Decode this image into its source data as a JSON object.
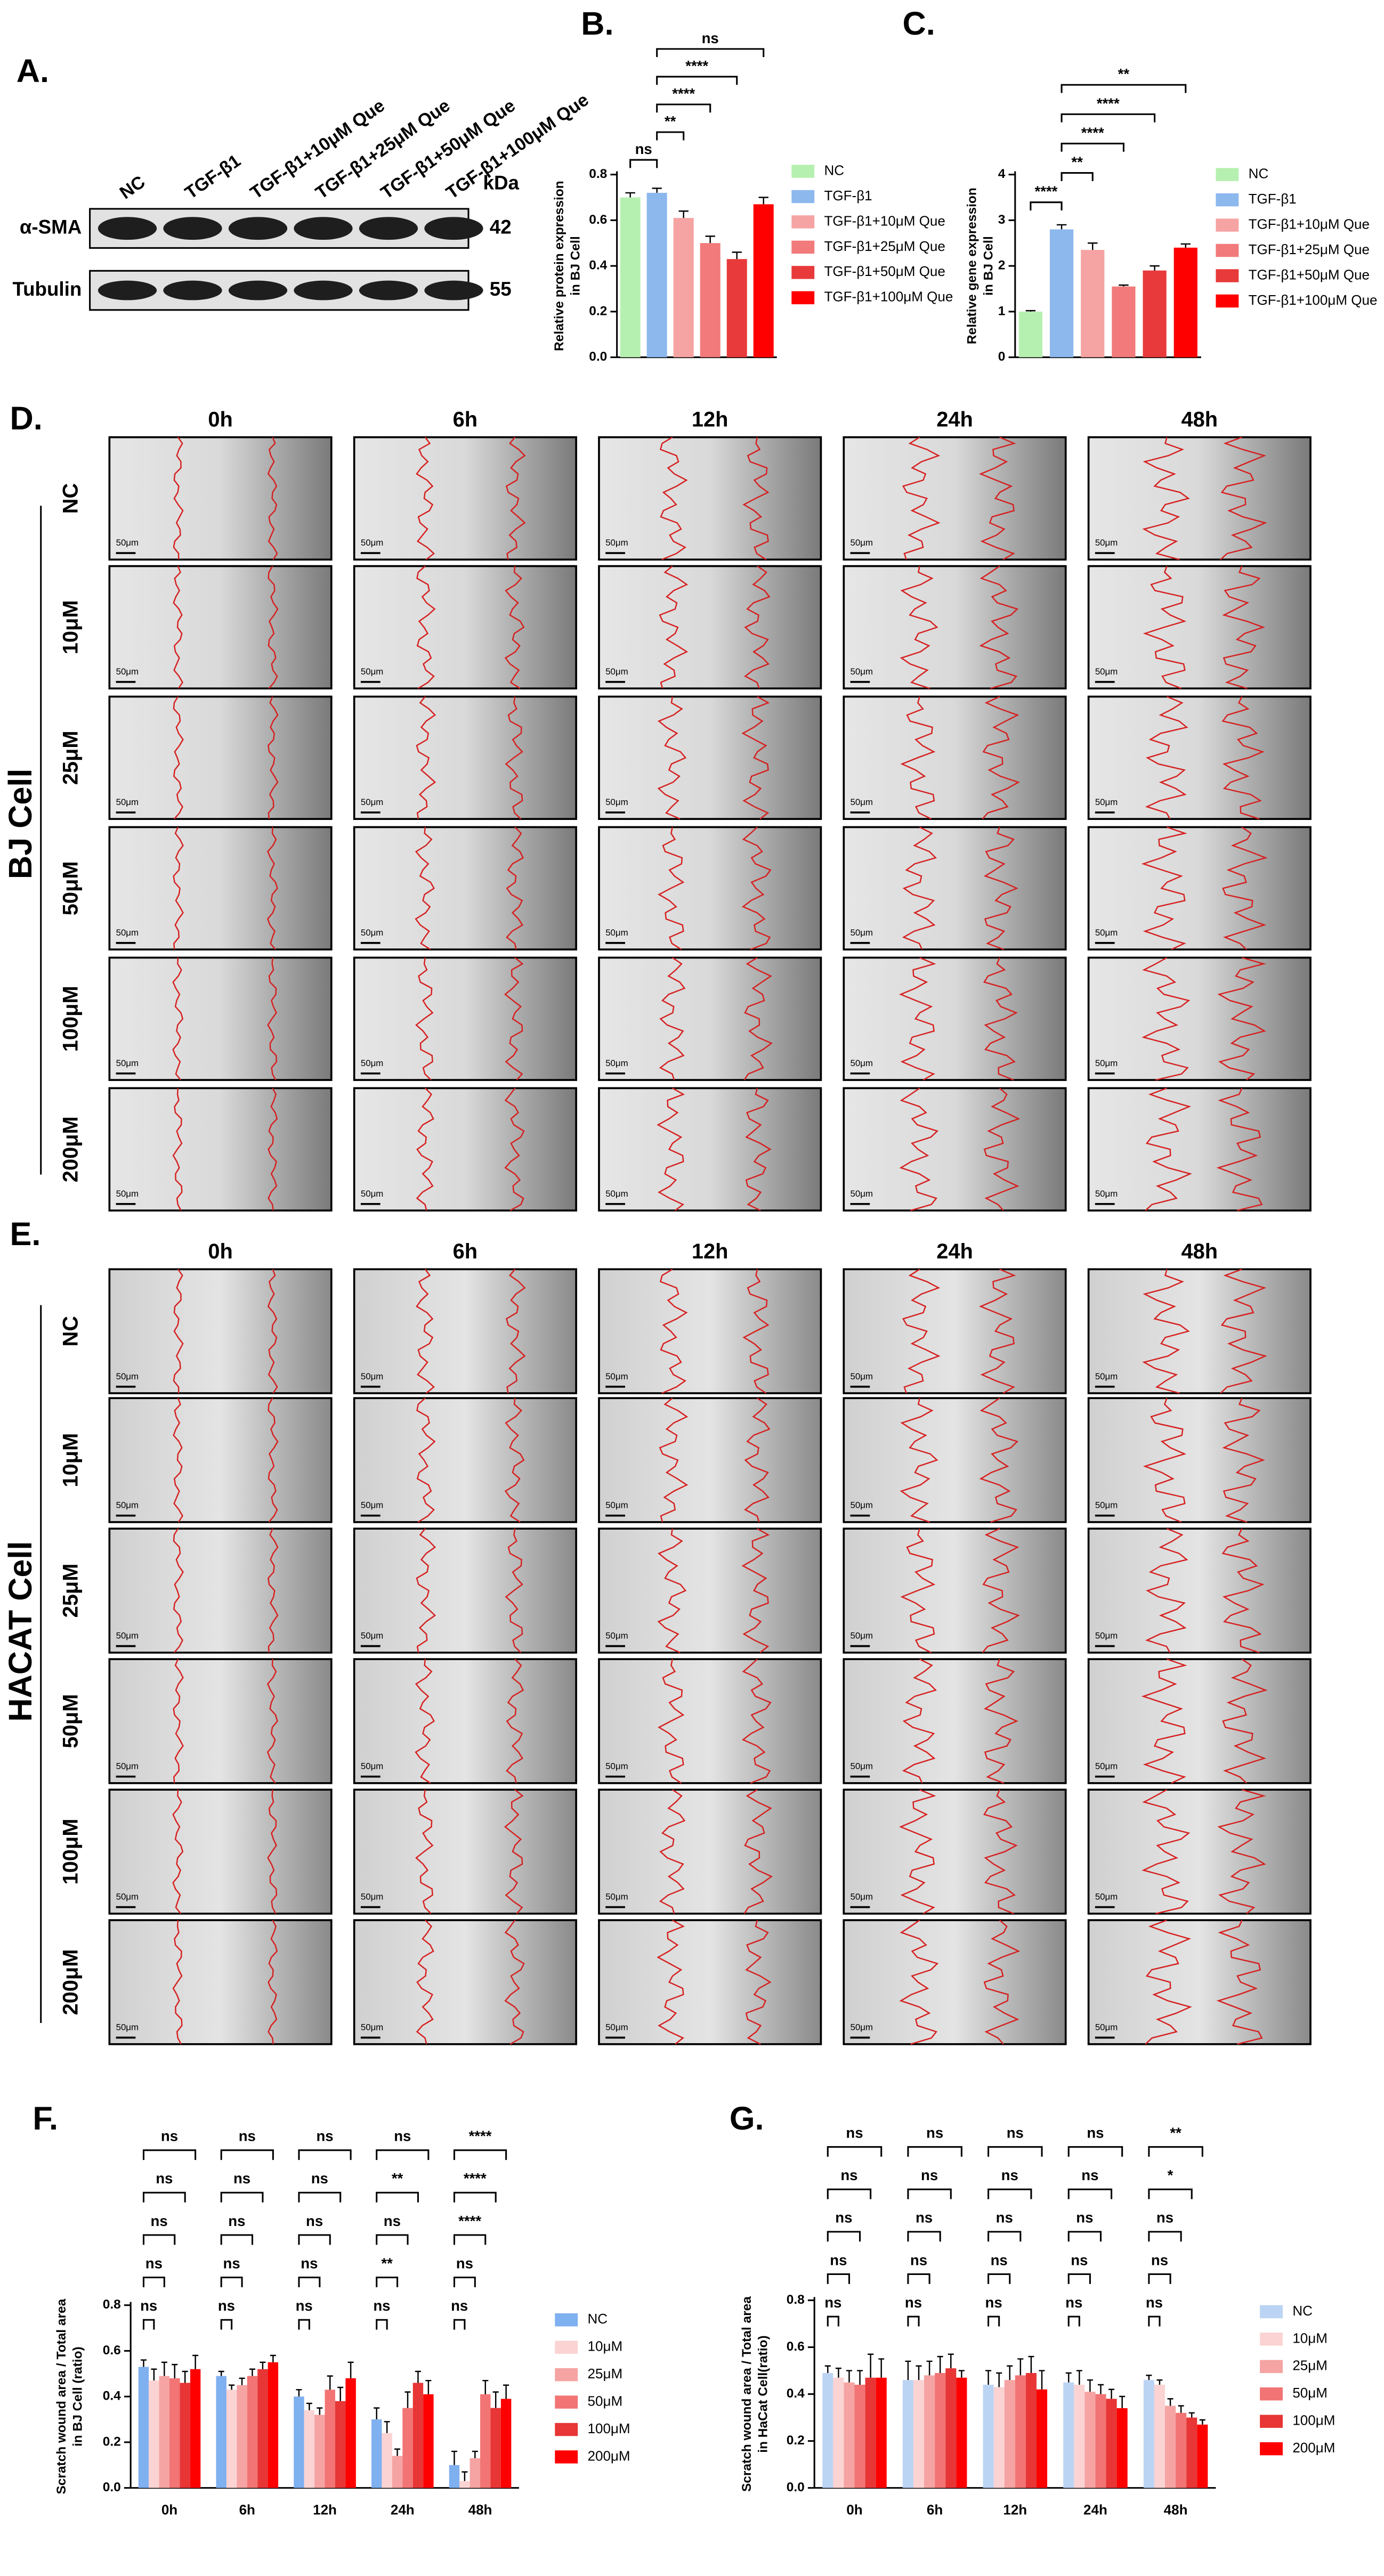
{
  "panel_a": {
    "label": "A.",
    "lanes": [
      "NC",
      "TGF-β1",
      "TGF-β1+10μM Que",
      "TGF-β1+25μM Que",
      "TGF-β1+50μM Que",
      "TGF-β1+100μM Que"
    ],
    "unit": "kDa",
    "rows": [
      {
        "name": "α-SMA",
        "mw": 42
      },
      {
        "name": "Tubulin",
        "mw": 55
      }
    ]
  },
  "chart_data": [
    {
      "type": "bar",
      "panel_label": "B.",
      "y_label": [
        "Relative protein expression",
        "in BJ Cell"
      ],
      "categories": [
        "NC",
        "TGF-β1",
        "TGF-β1+10μM Que",
        "TGF-β1+25μM Que",
        "TGF-β1+50μM Que",
        "TGF-β1+100μM Que"
      ],
      "values": [
        0.7,
        0.72,
        0.61,
        0.5,
        0.43,
        0.67
      ],
      "errors": [
        0.02,
        0.02,
        0.03,
        0.03,
        0.03,
        0.03
      ],
      "colors": [
        "#b6f0b0",
        "#8cb8ee",
        "#f6a3a3",
        "#f27a7a",
        "#e83a3a",
        "#ff0000"
      ],
      "ylim": [
        0,
        0.8
      ],
      "yticks": [
        {
          "value": 0,
          "label": "0.0"
        },
        0.2,
        0.4,
        0.6,
        0.8
      ],
      "legend": "right",
      "significance": [
        {
          "text": "ns",
          "pair": [
            "NC",
            "TGF-β1"
          ]
        },
        {
          "text": "**",
          "pair": [
            "TGF-β1",
            "TGF-β1+10μM Que"
          ]
        },
        {
          "text": "****",
          "pair": [
            "TGF-β1",
            "TGF-β1+25μM Que"
          ]
        },
        {
          "text": "****",
          "pair": [
            "TGF-β1",
            "TGF-β1+50μM Que"
          ]
        },
        {
          "text": "ns",
          "pair": [
            "TGF-β1",
            "TGF-β1+100μM Que"
          ]
        }
      ]
    },
    {
      "type": "bar",
      "panel_label": "C.",
      "y_label": [
        "Relative gene expression",
        "in BJ Cell"
      ],
      "categories": [
        "NC",
        "TGF-β1",
        "TGF-β1+10μM Que",
        "TGF-β1+25μM Que",
        "TGF-β1+50μM Que",
        "TGF-β1+100μM Que"
      ],
      "values": [
        1.0,
        2.8,
        2.35,
        1.55,
        1.9,
        2.4
      ],
      "errors": [
        0.02,
        0.1,
        0.15,
        0.03,
        0.1,
        0.08
      ],
      "colors": [
        "#b6f0b0",
        "#8cb8ee",
        "#f6a3a3",
        "#f27a7a",
        "#e83a3a",
        "#ff0000"
      ],
      "ylim": [
        0,
        4
      ],
      "yticks": [
        0,
        1,
        2,
        3,
        4
      ],
      "legend": "right",
      "significance": [
        {
          "text": "****",
          "pair": [
            "NC",
            "TGF-β1"
          ]
        },
        {
          "text": "**",
          "pair": [
            "TGF-β1",
            "TGF-β1+10μM Que"
          ]
        },
        {
          "text": "****",
          "pair": [
            "TGF-β1",
            "TGF-β1+25μM Que"
          ]
        },
        {
          "text": "****",
          "pair": [
            "TGF-β1",
            "TGF-β1+50μM Que"
          ]
        },
        {
          "text": "**",
          "pair": [
            "TGF-β1",
            "TGF-β1+100μM Que"
          ]
        }
      ]
    },
    {
      "type": "grouped_bar",
      "panel_label": "F.",
      "y_label": [
        "Scratch wound area / Total area",
        "in BJ Cell (ratio)"
      ],
      "categories": [
        "0h",
        "6h",
        "12h",
        "24h",
        "48h"
      ],
      "series": [
        {
          "name": "NC",
          "color": "#7fb0f0",
          "values": [
            0.53,
            0.49,
            0.4,
            0.3,
            0.1
          ],
          "errors": [
            0.03,
            0.02,
            0.03,
            0.05,
            0.06
          ]
        },
        {
          "name": "10μM",
          "color": "#fbd3d3",
          "values": [
            0.47,
            0.43,
            0.34,
            0.24,
            0.03
          ],
          "errors": [
            0.05,
            0.02,
            0.03,
            0.05,
            0.04
          ]
        },
        {
          "name": "25μM",
          "color": "#f6a3a3",
          "values": [
            0.49,
            0.45,
            0.32,
            0.14,
            0.13
          ],
          "errors": [
            0.06,
            0.03,
            0.03,
            0.03,
            0.03
          ]
        },
        {
          "name": "50μM",
          "color": "#f27474",
          "values": [
            0.48,
            0.49,
            0.43,
            0.35,
            0.41
          ],
          "errors": [
            0.06,
            0.03,
            0.06,
            0.07,
            0.06
          ]
        },
        {
          "name": "100μM",
          "color": "#e83535",
          "values": [
            0.46,
            0.52,
            0.38,
            0.46,
            0.35
          ],
          "errors": [
            0.05,
            0.03,
            0.06,
            0.05,
            0.07
          ]
        },
        {
          "name": "200μM",
          "color": "#ff0000",
          "values": [
            0.52,
            0.55,
            0.48,
            0.41,
            0.39
          ],
          "errors": [
            0.06,
            0.03,
            0.07,
            0.06,
            0.06
          ]
        }
      ],
      "ylim": [
        0,
        0.8
      ],
      "yticks": [
        {
          "value": 0,
          "label": "0.0"
        },
        0.2,
        0.4,
        0.6,
        0.8
      ],
      "legend": "right",
      "significance": [
        [
          "ns",
          "ns",
          "ns",
          "ns",
          "ns"
        ],
        [
          "ns",
          "ns",
          "ns",
          "ns",
          "ns"
        ],
        [
          "ns",
          "ns",
          "ns",
          "ns",
          "ns"
        ],
        [
          "ns",
          "**",
          "ns",
          "**",
          "ns"
        ],
        [
          "ns",
          "ns",
          "****",
          "****",
          "****"
        ]
      ]
    },
    {
      "type": "grouped_bar",
      "panel_label": "G.",
      "y_label": [
        "Scratch wound area / Total area",
        "in HaCat Cell(ratio)"
      ],
      "categories": [
        "0h",
        "6h",
        "12h",
        "24h",
        "48h"
      ],
      "series": [
        {
          "name": "NC",
          "color": "#bcd4f4",
          "values": [
            0.49,
            0.46,
            0.44,
            0.45,
            0.46
          ],
          "errors": [
            0.03,
            0.08,
            0.06,
            0.04,
            0.02
          ]
        },
        {
          "name": "10μM",
          "color": "#fbd3d3",
          "values": [
            0.47,
            0.46,
            0.43,
            0.44,
            0.44
          ],
          "errors": [
            0.04,
            0.06,
            0.06,
            0.06,
            0.02
          ]
        },
        {
          "name": "25μM",
          "color": "#f6a3a3",
          "values": [
            0.45,
            0.48,
            0.46,
            0.41,
            0.35
          ],
          "errors": [
            0.05,
            0.06,
            0.06,
            0.05,
            0.03
          ]
        },
        {
          "name": "50μM",
          "color": "#f27474",
          "values": [
            0.44,
            0.49,
            0.48,
            0.4,
            0.32
          ],
          "errors": [
            0.06,
            0.07,
            0.07,
            0.04,
            0.03
          ]
        },
        {
          "name": "100μM",
          "color": "#e83535",
          "values": [
            0.47,
            0.51,
            0.49,
            0.38,
            0.3
          ],
          "errors": [
            0.1,
            0.06,
            0.07,
            0.04,
            0.02
          ]
        },
        {
          "name": "200μM",
          "color": "#ff0000",
          "values": [
            0.47,
            0.47,
            0.42,
            0.34,
            0.27
          ],
          "errors": [
            0.08,
            0.03,
            0.08,
            0.05,
            0.02
          ]
        }
      ],
      "ylim": [
        0,
        0.8
      ],
      "yticks": [
        {
          "value": 0,
          "label": "0.0"
        },
        0.2,
        0.4,
        0.6,
        0.8
      ],
      "legend": "right",
      "significance": [
        [
          "ns",
          "ns",
          "ns",
          "ns",
          "ns"
        ],
        [
          "ns",
          "ns",
          "ns",
          "ns",
          "ns"
        ],
        [
          "ns",
          "ns",
          "ns",
          "ns",
          "ns"
        ],
        [
          "ns",
          "ns",
          "ns",
          "ns",
          "ns"
        ],
        [
          "ns",
          "ns",
          "ns",
          "*",
          "**"
        ]
      ]
    }
  ],
  "panel_d": {
    "label": "D.",
    "cell": "BJ Cell",
    "columns": [
      "0h",
      "6h",
      "12h",
      "24h",
      "48h"
    ],
    "rows": [
      "NC",
      "10μM",
      "25μM",
      "50μM",
      "100μM",
      "200μM"
    ],
    "scale_bar": "50μm"
  },
  "panel_e": {
    "label": "E.",
    "cell": "HACAT Cell",
    "columns": [
      "0h",
      "6h",
      "12h",
      "24h",
      "48h"
    ],
    "rows": [
      "NC",
      "10μM",
      "25μM",
      "50μM",
      "100μM",
      "200μM"
    ],
    "scale_bar": "50μm"
  }
}
